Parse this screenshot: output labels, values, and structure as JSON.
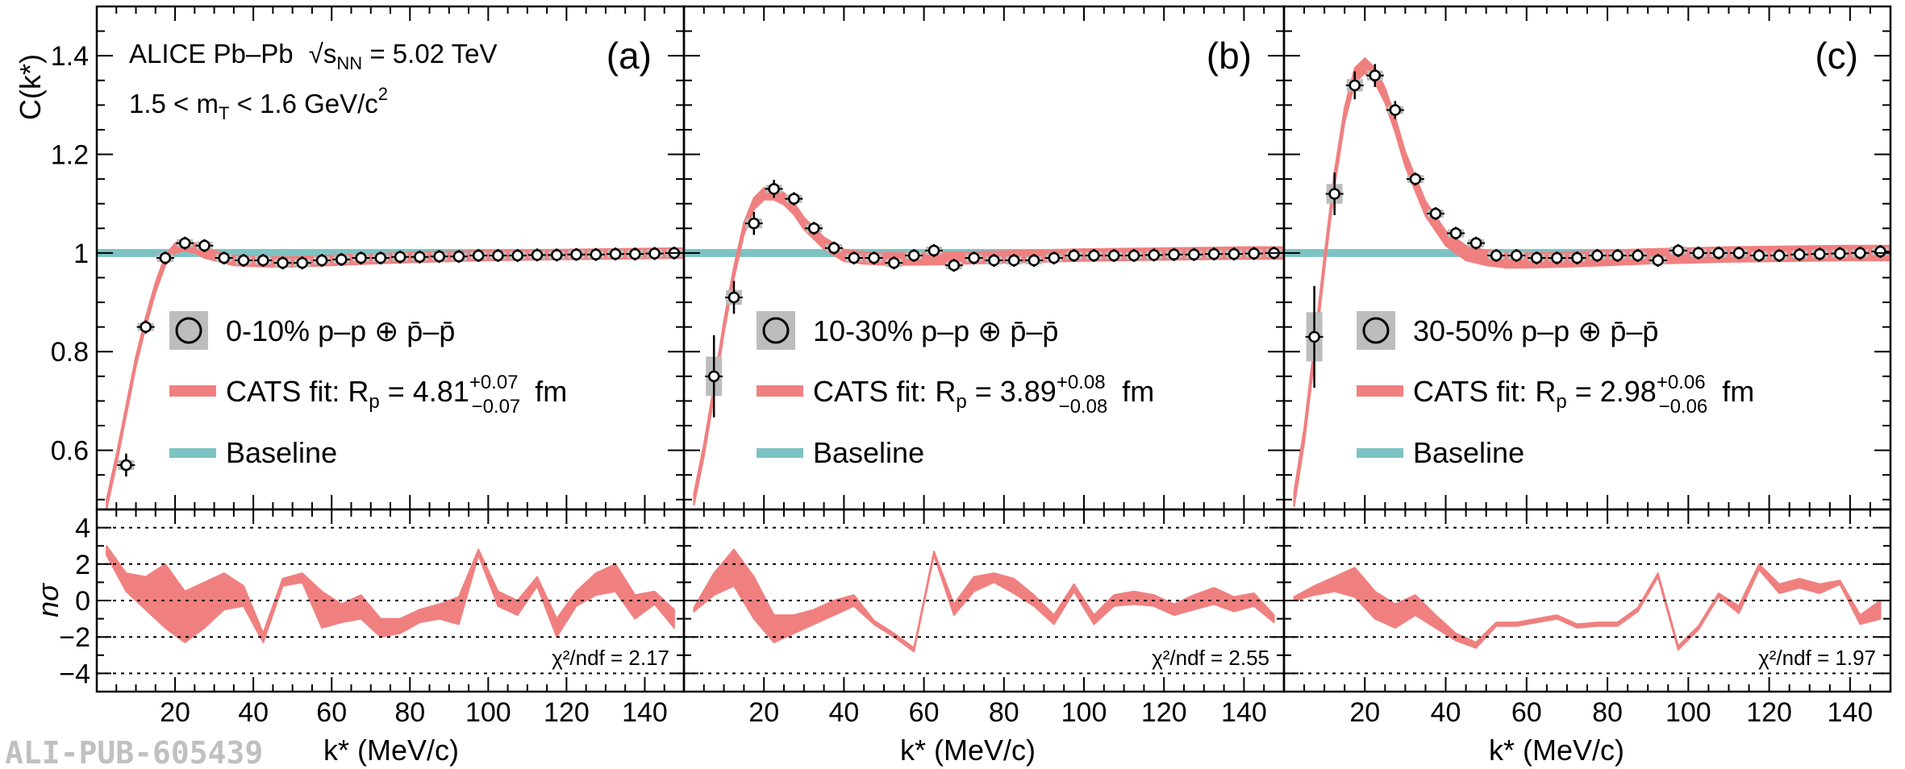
{
  "figure": {
    "watermark": "ALI-PUB-605439",
    "experiment_label": "ALICE Pb–Pb",
    "energy_label": "√s",
    "energy_sub": "NN",
    "energy_value": " = 5.02 TeV",
    "mt_range_label": "1.5 < m",
    "mt_sub": "T",
    "mt_range_value": " < 1.6 GeV/c",
    "mt_sup": "2",
    "y_top_label": "C(k*)",
    "y_bottom_label": "nσ",
    "x_label": "k* (MeV/c)",
    "legend_baseline": "Baseline",
    "legend_fit_prefix": "CATS fit: R",
    "legend_fit_sub": "p",
    "legend_fit_unit": "fm",
    "legend_pair_suffix": "p–p ⊕ p̄–p̄",
    "colors": {
      "fit": "#f08080",
      "baseline": "#7ec3c3",
      "syst_box": "#bdbdbd",
      "marker_fill": "#ffffff",
      "marker_edge": "#000000",
      "grid": "#000000"
    }
  },
  "chart_data": [
    {
      "type": "scatter",
      "panel": "(a)",
      "centrality": "0-10%",
      "radius": "4.81",
      "radius_plus": "+0.07",
      "radius_minus": "−0.07",
      "chi2": "χ²/ndf = 2.17",
      "xlim": [
        0,
        150
      ],
      "ylim_top": [
        0.48,
        1.5
      ],
      "ylim_bottom": [
        -5,
        5
      ],
      "x_ticks": [
        "20",
        "40",
        "60",
        "80",
        "100",
        "120",
        "140"
      ],
      "y_ticks_top": [
        "0.6",
        "0.8",
        "1",
        "1.2",
        "1.4"
      ],
      "y_ticks_bottom": [
        "−4",
        "−2",
        "0",
        "2",
        "4"
      ],
      "points": {
        "x": [
          7.5,
          12.5,
          17.5,
          22.5,
          27.5,
          32.5,
          37.5,
          42.5,
          47.5,
          52.5,
          57.5,
          62.5,
          67.5,
          72.5,
          77.5,
          82.5,
          87.5,
          92.5,
          97.5,
          102.5,
          107.5,
          112.5,
          117.5,
          122.5,
          127.5,
          132.5,
          137.5,
          142.5,
          147.5
        ],
        "y": [
          0.57,
          0.85,
          0.99,
          1.02,
          1.015,
          0.99,
          0.985,
          0.985,
          0.98,
          0.98,
          0.985,
          0.987,
          0.99,
          0.99,
          0.992,
          0.992,
          0.993,
          0.993,
          0.995,
          0.995,
          0.995,
          0.996,
          0.996,
          0.997,
          0.997,
          0.998,
          0.998,
          0.999,
          1.0
        ],
        "yerr": [
          0.02,
          0.01,
          0.008,
          0.006,
          0.005,
          0.005,
          0.004,
          0.004,
          0.004,
          0.004,
          0.004,
          0.004,
          0.004,
          0.004,
          0.004,
          0.004,
          0.004,
          0.004,
          0.004,
          0.004,
          0.004,
          0.004,
          0.004,
          0.004,
          0.004,
          0.004,
          0.004,
          0.004,
          0.004
        ]
      },
      "fit": {
        "x": [
          2.5,
          5,
          7.5,
          10,
          12.5,
          15,
          17.5,
          20,
          22.5,
          25,
          27.5,
          30,
          35,
          40,
          45,
          50,
          60,
          70,
          80,
          90,
          100,
          110,
          120,
          130,
          140,
          150
        ],
        "y": [
          0.49,
          0.58,
          0.68,
          0.78,
          0.86,
          0.93,
          0.985,
          1.01,
          1.015,
          1.01,
          1.0,
          0.995,
          0.985,
          0.983,
          0.982,
          0.982,
          0.985,
          0.988,
          0.991,
          0.993,
          0.995,
          0.996,
          0.997,
          0.998,
          0.999,
          1.0
        ],
        "half_width": 0.01
      },
      "nsigma": {
        "x": [
          2.5,
          7.5,
          12.5,
          17.5,
          22.5,
          27.5,
          32.5,
          37.5,
          42.5,
          47.5,
          52.5,
          57.5,
          62.5,
          67.5,
          72.5,
          77.5,
          82.5,
          87.5,
          92.5,
          97.5,
          102.5,
          107.5,
          112.5,
          117.5,
          122.5,
          127.5,
          132.5,
          137.5,
          142.5,
          147.5
        ],
        "lo": [
          2.5,
          0.5,
          -0.5,
          -1.5,
          -2.3,
          -1.5,
          -0.5,
          -0.3,
          -2.3,
          0.8,
          1.0,
          -1.5,
          -1.2,
          -1.0,
          -2.0,
          -1.8,
          -1.2,
          -1.0,
          -1.3,
          2.5,
          -0.3,
          -0.8,
          0.8,
          -2.0,
          -0.3,
          0.3,
          0.5,
          -1.0,
          -0.2,
          -1.5
        ],
        "hi": [
          3.0,
          1.5,
          1.3,
          2.0,
          0.5,
          1.0,
          1.5,
          0.8,
          -1.8,
          1.2,
          1.5,
          0.5,
          -0.2,
          0.3,
          -1.0,
          -1.0,
          -0.5,
          -0.2,
          0.2,
          2.8,
          0.5,
          0.0,
          1.3,
          -1.0,
          0.5,
          1.5,
          2.0,
          0.3,
          0.5,
          -0.5
        ]
      }
    },
    {
      "type": "scatter",
      "panel": "(b)",
      "centrality": "10-30%",
      "radius": "3.89",
      "radius_plus": "+0.08",
      "radius_minus": "−0.08",
      "chi2": "χ²/ndf = 2.55",
      "xlim": [
        0,
        150
      ],
      "ylim_top": [
        0.48,
        1.5
      ],
      "ylim_bottom": [
        -5,
        5
      ],
      "x_ticks": [
        "20",
        "40",
        "60",
        "80",
        "100",
        "120",
        "140"
      ],
      "y_ticks_top": [],
      "y_ticks_bottom": [],
      "points": {
        "x": [
          7.5,
          12.5,
          17.5,
          22.5,
          27.5,
          32.5,
          37.5,
          42.5,
          47.5,
          52.5,
          57.5,
          62.5,
          67.5,
          72.5,
          77.5,
          82.5,
          87.5,
          92.5,
          97.5,
          102.5,
          107.5,
          112.5,
          117.5,
          122.5,
          127.5,
          132.5,
          137.5,
          142.5,
          147.5
        ],
        "y": [
          0.75,
          0.91,
          1.06,
          1.13,
          1.11,
          1.05,
          1.01,
          0.99,
          0.99,
          0.98,
          0.995,
          1.005,
          0.975,
          0.99,
          0.985,
          0.985,
          0.985,
          0.99,
          0.995,
          0.995,
          0.995,
          0.995,
          0.996,
          0.997,
          0.997,
          0.998,
          0.998,
          0.999,
          1.0
        ],
        "yerr": [
          0.08,
          0.03,
          0.02,
          0.015,
          0.01,
          0.008,
          0.006,
          0.005,
          0.005,
          0.005,
          0.005,
          0.005,
          0.005,
          0.005,
          0.004,
          0.004,
          0.004,
          0.004,
          0.004,
          0.004,
          0.004,
          0.004,
          0.004,
          0.004,
          0.004,
          0.004,
          0.004,
          0.004,
          0.004
        ]
      },
      "fit": {
        "x": [
          2.5,
          5,
          7.5,
          10,
          12.5,
          15,
          17.5,
          20,
          22.5,
          25,
          27.5,
          30,
          35,
          40,
          45,
          50,
          60,
          70,
          80,
          90,
          100,
          110,
          120,
          130,
          140,
          150
        ],
        "y": [
          0.5,
          0.6,
          0.72,
          0.85,
          0.96,
          1.05,
          1.1,
          1.12,
          1.12,
          1.11,
          1.09,
          1.06,
          1.02,
          0.995,
          0.99,
          0.988,
          0.988,
          0.99,
          0.992,
          0.994,
          0.996,
          0.997,
          0.998,
          0.999,
          1.0,
          1.0
        ],
        "half_width": 0.012
      },
      "nsigma": {
        "x": [
          2.5,
          7.5,
          12.5,
          17.5,
          22.5,
          27.5,
          32.5,
          37.5,
          42.5,
          47.5,
          52.5,
          57.5,
          62.5,
          67.5,
          72.5,
          77.5,
          82.5,
          87.5,
          92.5,
          97.5,
          102.5,
          107.5,
          112.5,
          117.5,
          122.5,
          127.5,
          132.5,
          137.5,
          142.5,
          147.5
        ],
        "lo": [
          -0.6,
          0.3,
          0.8,
          -1.0,
          -2.3,
          -1.8,
          -1.3,
          -0.8,
          -0.3,
          -1.3,
          -2.0,
          -2.8,
          2.5,
          -0.8,
          0.5,
          1.0,
          0.4,
          -0.3,
          -1.3,
          0.5,
          -1.3,
          -0.3,
          -0.2,
          -0.3,
          -0.8,
          -0.5,
          -0.2,
          -0.6,
          -0.3,
          -1.2
        ],
        "hi": [
          -0.4,
          1.5,
          2.8,
          1.3,
          -0.8,
          -0.8,
          -0.5,
          0.0,
          0.3,
          -1.1,
          -1.8,
          -2.6,
          2.7,
          -0.2,
          1.3,
          1.5,
          1.2,
          0.3,
          -0.8,
          0.9,
          -0.8,
          0.3,
          0.5,
          0.3,
          -0.2,
          0.3,
          0.7,
          0.2,
          0.4,
          -0.8
        ]
      }
    },
    {
      "type": "scatter",
      "panel": "(c)",
      "centrality": "30-50%",
      "radius": "2.98",
      "radius_plus": "+0.06",
      "radius_minus": "−0.06",
      "chi2": "χ²/ndf = 1.97",
      "xlim": [
        0,
        150
      ],
      "ylim_top": [
        0.48,
        1.5
      ],
      "ylim_bottom": [
        -5,
        5
      ],
      "x_ticks": [
        "20",
        "40",
        "60",
        "80",
        "100",
        "120",
        "140"
      ],
      "y_ticks_top": [],
      "y_ticks_bottom": [],
      "points": {
        "x": [
          7.5,
          12.5,
          17.5,
          22.5,
          27.5,
          32.5,
          37.5,
          42.5,
          47.5,
          52.5,
          57.5,
          62.5,
          67.5,
          72.5,
          77.5,
          82.5,
          87.5,
          92.5,
          97.5,
          102.5,
          107.5,
          112.5,
          117.5,
          122.5,
          127.5,
          132.5,
          137.5,
          142.5,
          147.5
        ],
        "y": [
          0.83,
          1.12,
          1.34,
          1.36,
          1.29,
          1.15,
          1.08,
          1.04,
          1.02,
          0.995,
          0.995,
          0.99,
          0.99,
          0.99,
          0.995,
          0.995,
          0.995,
          0.985,
          1.005,
          1.0,
          1.0,
          1.0,
          0.995,
          0.995,
          0.997,
          0.998,
          0.999,
          1.0,
          1.003
        ],
        "yerr": [
          0.1,
          0.04,
          0.025,
          0.02,
          0.015,
          0.01,
          0.008,
          0.006,
          0.006,
          0.005,
          0.005,
          0.005,
          0.005,
          0.005,
          0.005,
          0.005,
          0.005,
          0.005,
          0.005,
          0.005,
          0.005,
          0.005,
          0.005,
          0.005,
          0.005,
          0.005,
          0.005,
          0.005,
          0.005
        ]
      },
      "fit": {
        "x": [
          2.5,
          5,
          7.5,
          10,
          12.5,
          15,
          17.5,
          20,
          22.5,
          25,
          27.5,
          30,
          35,
          40,
          45,
          50,
          55,
          60,
          70,
          80,
          90,
          100,
          110,
          120,
          130,
          140,
          150
        ],
        "y": [
          0.5,
          0.63,
          0.8,
          0.98,
          1.15,
          1.28,
          1.36,
          1.38,
          1.36,
          1.32,
          1.26,
          1.19,
          1.09,
          1.03,
          1.0,
          0.99,
          0.985,
          0.985,
          0.987,
          0.99,
          0.993,
          0.995,
          0.997,
          0.998,
          0.999,
          1.0,
          1.0
        ],
        "half_width": 0.015
      },
      "nsigma": {
        "x": [
          2.5,
          7.5,
          12.5,
          17.5,
          22.5,
          27.5,
          32.5,
          37.5,
          42.5,
          47.5,
          52.5,
          57.5,
          62.5,
          67.5,
          72.5,
          77.5,
          82.5,
          87.5,
          92.5,
          97.5,
          102.5,
          107.5,
          112.5,
          117.5,
          122.5,
          127.5,
          132.5,
          137.5,
          142.5,
          147.5
        ],
        "lo": [
          0.0,
          0.3,
          0.5,
          0.2,
          -1.0,
          -1.5,
          -0.8,
          -1.5,
          -2.2,
          -2.6,
          -1.4,
          -1.4,
          -1.2,
          -1.0,
          -1.5,
          -1.4,
          -1.4,
          -0.6,
          1.3,
          -2.7,
          -1.6,
          0.2,
          -0.7,
          1.7,
          0.4,
          0.7,
          0.4,
          0.9,
          -1.3,
          -1.0
        ],
        "hi": [
          0.2,
          0.8,
          1.3,
          1.8,
          0.5,
          -0.2,
          0.3,
          -0.8,
          -1.8,
          -2.3,
          -1.2,
          -1.2,
          -1.0,
          -0.8,
          -1.3,
          -1.2,
          -1.2,
          -0.4,
          1.5,
          -2.5,
          -1.4,
          0.4,
          -0.3,
          2.0,
          0.9,
          1.2,
          0.9,
          1.1,
          -0.8,
          0.0
        ]
      }
    }
  ]
}
